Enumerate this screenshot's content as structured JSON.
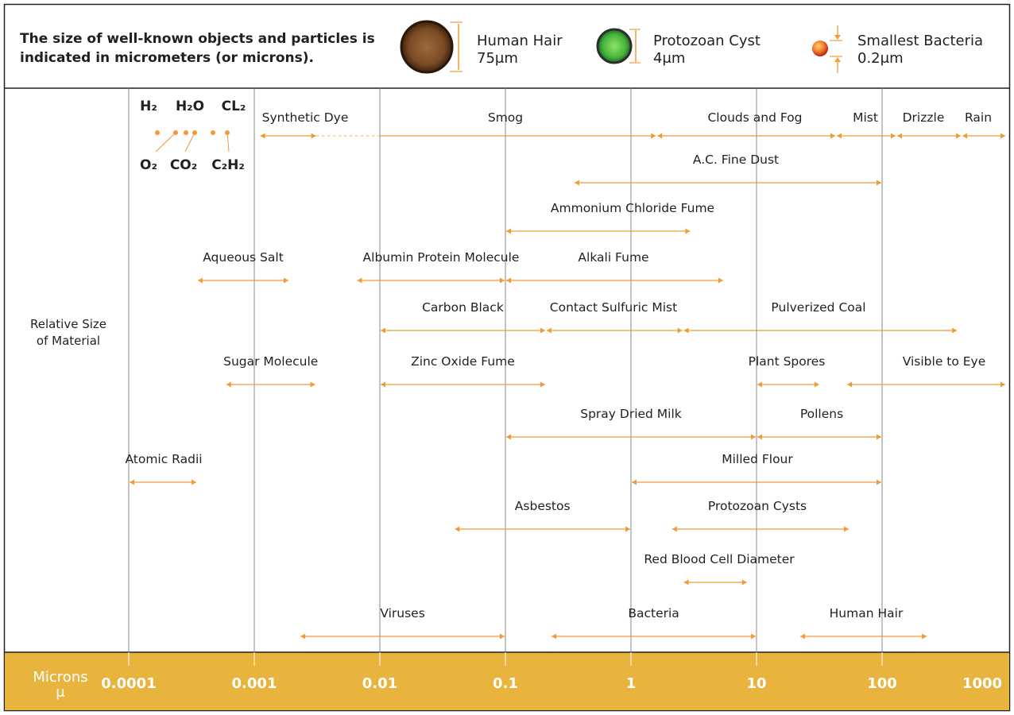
{
  "header": {
    "description_line1": "The size of well-known objects and particles is",
    "description_line2": "indicated in micrometers (or microns).",
    "samples": [
      {
        "name": "Human Hair",
        "size": "75μm"
      },
      {
        "name": "Protozoan Cyst",
        "size": "4μm"
      },
      {
        "name": "Smallest Bacteria",
        "size": "0.2μm"
      }
    ]
  },
  "colors": {
    "accent": "#f29a38",
    "axis_band": "#e9b43d",
    "grid": "#8a8a8a",
    "text": "#231f20",
    "hair": "#6b3d1c",
    "cyst": "#3aa63a",
    "bacteria": "#e2571c"
  },
  "chart_data": {
    "type": "range",
    "title": "The size of well-known objects and particles is indicated in micrometers (or microns).",
    "ylabel": "Relative Size of Material",
    "xlabel": "Microns",
    "xlabel_symbol": "μ",
    "xscale": "log",
    "xlim": [
      0.0001,
      1000
    ],
    "xticks": [
      0.0001,
      0.001,
      0.01,
      0.1,
      1,
      10,
      100,
      1000
    ],
    "xtick_labels": [
      "0.0001",
      "0.001",
      "0.01",
      "0.1",
      "1",
      "10",
      "100",
      "1000"
    ],
    "molecules": {
      "top": [
        "H₂",
        "H₂O",
        "CL₂"
      ],
      "bottom": [
        "O₂",
        "CO₂",
        "C₂H₂"
      ]
    },
    "ranges": [
      {
        "label": "Synthetic Dye",
        "min": 0.0011,
        "max": 0.01,
        "row": 1,
        "dashed_to": 0.01
      },
      {
        "label": "Smog",
        "min": 0.0011,
        "max": 1.6,
        "row": 1
      },
      {
        "label": "Clouds and Fog",
        "min": 1.6,
        "max": 43,
        "row": 1
      },
      {
        "label": "Mist",
        "min": 43,
        "max": 130,
        "row": 1
      },
      {
        "label": "Drizzle",
        "min": 130,
        "max": 430,
        "row": 1
      },
      {
        "label": "Rain",
        "min": 430,
        "max": 1000,
        "row": 1
      },
      {
        "label": "A.C. Fine Dust",
        "min": 0.35,
        "max": 100,
        "row": 2
      },
      {
        "label": "Ammonium Chloride Fume",
        "min": 0.1,
        "max": 3,
        "row": 3
      },
      {
        "label": "Aqueous Salt",
        "min": 0.00035,
        "max": 0.0019,
        "row": 4
      },
      {
        "label": "Albumin Protein Molecule",
        "min": 0.0065,
        "max": 0.1,
        "row": 4
      },
      {
        "label": "Alkali Fume",
        "min": 0.1,
        "max": 5.5,
        "row": 4
      },
      {
        "label": "Carbon Black",
        "min": 0.01,
        "max": 0.21,
        "row": 5
      },
      {
        "label": "Contact Sulfuric Mist",
        "min": 0.21,
        "max": 2.6,
        "row": 5
      },
      {
        "label": "Pulverized Coal",
        "min": 2.6,
        "max": 400,
        "row": 5
      },
      {
        "label": "Sugar Molecule",
        "min": 0.00059,
        "max": 0.0031,
        "row": 6
      },
      {
        "label": "Zinc Oxide Fume",
        "min": 0.01,
        "max": 0.21,
        "row": 6
      },
      {
        "label": "Plant Spores",
        "min": 10,
        "max": 32,
        "row": 6
      },
      {
        "label": "Visible to Eye",
        "min": 52,
        "max": 1000,
        "row": 6
      },
      {
        "label": "Spray Dried Milk",
        "min": 0.1,
        "max": 10,
        "row": 7
      },
      {
        "label": "Pollens",
        "min": 10,
        "max": 100,
        "row": 7
      },
      {
        "label": "Atomic Radii",
        "min": 0.0001,
        "max": 0.00035,
        "row": 8
      },
      {
        "label": "Milled Flour",
        "min": 1,
        "max": 100,
        "row": 8
      },
      {
        "label": "Asbestos",
        "min": 0.039,
        "max": 1,
        "row": 9
      },
      {
        "label": "Protozoan Cysts",
        "min": 2.1,
        "max": 55,
        "row": 9
      },
      {
        "label": "Red Blood Cell Diameter",
        "min": 2.6,
        "max": 8.5,
        "row": 10
      },
      {
        "label": "Viruses",
        "min": 0.0023,
        "max": 0.1,
        "row": 11
      },
      {
        "label": "Bacteria",
        "min": 0.23,
        "max": 10,
        "row": 11
      },
      {
        "label": "Human Hair",
        "min": 22,
        "max": 230,
        "row": 11
      }
    ]
  }
}
